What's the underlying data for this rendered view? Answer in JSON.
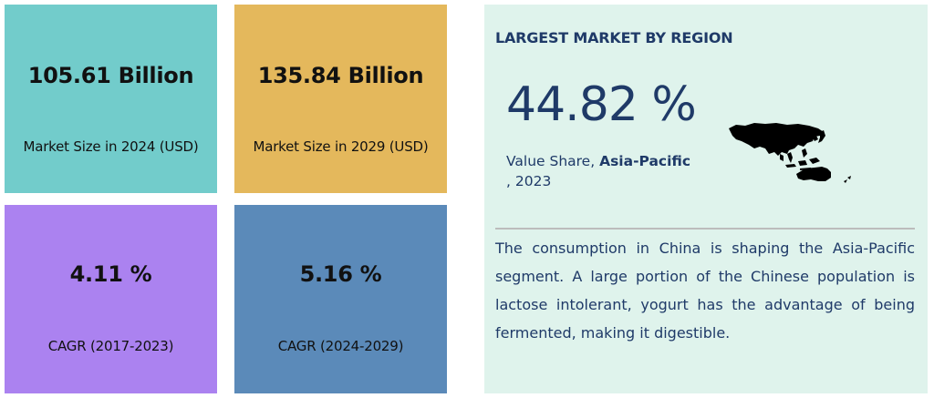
{
  "cards": [
    {
      "value": "105.61 Billion",
      "label": "Market Size in 2024 (USD)",
      "color": "#72cccb"
    },
    {
      "value": "135.84 Billion",
      "label": "Market Size in 2029 (USD)",
      "color": "#e4b85c"
    },
    {
      "value": "4.11 %",
      "label": "CAGR (2017-2023)",
      "color": "#ab82f0"
    },
    {
      "value": "5.16 %",
      "label": "CAGR (2024-2029)",
      "color": "#5b8ab9"
    }
  ],
  "region": {
    "heading": "LARGEST MARKET BY REGION",
    "percent": "44.82 %",
    "share_prefix": "Value Share, ",
    "share_region": "Asia-Pacific",
    "share_year": ", 2023",
    "map_icon": "asia-pacific-map-icon",
    "description": "The consumption in China is shaping the Asia-Pacific segment. A large portion of the Chinese population is lactose intolerant, yogurt has the advantage of being fermented, making it digestible.",
    "panel_color": "#dff3ec",
    "text_color": "#1f3a68"
  }
}
